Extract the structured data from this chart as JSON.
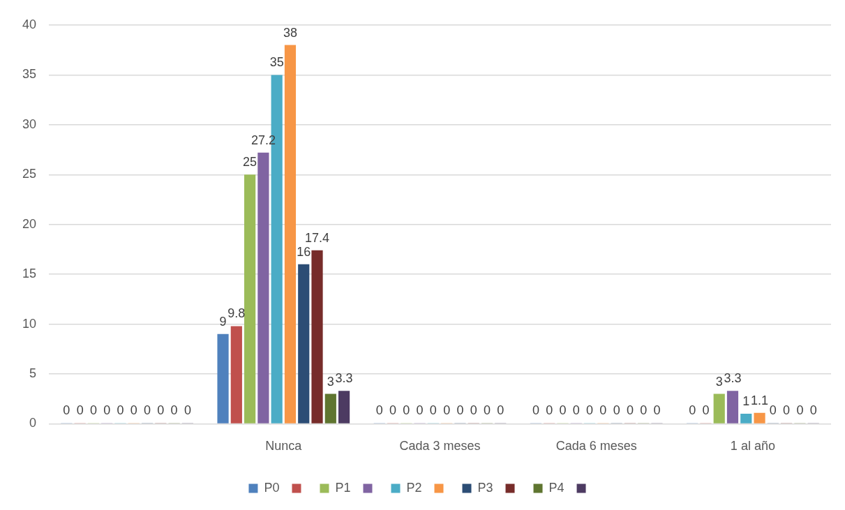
{
  "chart_data": {
    "type": "bar",
    "categories": [
      null,
      "Nunca",
      "Cada 3 meses",
      "Cada 6 meses",
      "1 al año"
    ],
    "series": [
      {
        "name": "P0",
        "color": "#4f81bd",
        "values": [
          0,
          9,
          0,
          0,
          0
        ]
      },
      {
        "color": "#c0504d",
        "values": [
          0,
          9.8,
          0,
          0,
          0
        ]
      },
      {
        "name": "P1",
        "color": "#9bbb59",
        "values": [
          0,
          25,
          0,
          0,
          3
        ]
      },
      {
        "color": "#8064a2",
        "values": [
          0,
          27.2,
          0,
          0,
          3.3
        ]
      },
      {
        "name": "P2",
        "color": "#4bacc6",
        "values": [
          0,
          35,
          0,
          0,
          1
        ]
      },
      {
        "color": "#f79646",
        "values": [
          0,
          38,
          0,
          0,
          1.1
        ]
      },
      {
        "name": "P3",
        "color": "#2c4d75",
        "values": [
          0,
          16,
          0,
          0,
          0
        ]
      },
      {
        "color": "#772c2a",
        "values": [
          0,
          17.4,
          0,
          0,
          0
        ]
      },
      {
        "name": "P4",
        "color": "#5f7530",
        "values": [
          0,
          3,
          0,
          0,
          0
        ]
      },
      {
        "color": "#4d3b62",
        "values": [
          0,
          3.3,
          0,
          0,
          0
        ]
      }
    ],
    "ylim": [
      0,
      40
    ],
    "yticks": [
      0,
      5,
      10,
      15,
      20,
      25,
      30,
      35,
      40
    ],
    "grid": "y",
    "legend": "bottom",
    "data_labels": true
  }
}
